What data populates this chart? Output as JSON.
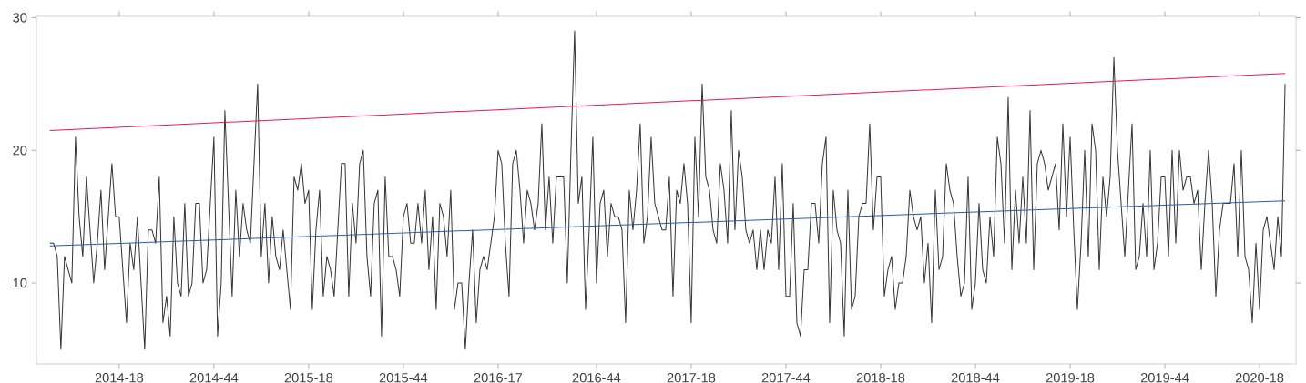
{
  "chart_data": {
    "type": "line",
    "xlim": [
      "2013-11-20",
      "2020-07-06"
    ],
    "ylim": [
      3.9,
      30.1
    ],
    "yticks": [
      10,
      20,
      30
    ],
    "xticks": [
      {
        "value": "2014-04-28",
        "label": "2014-18"
      },
      {
        "value": "2014-10-27",
        "label": "2014-44"
      },
      {
        "value": "2015-04-27",
        "label": "2015-18"
      },
      {
        "value": "2015-10-26",
        "label": "2015-44"
      },
      {
        "value": "2016-04-25",
        "label": "2016-17"
      },
      {
        "value": "2016-10-31",
        "label": "2016-44"
      },
      {
        "value": "2017-05-01",
        "label": "2017-18"
      },
      {
        "value": "2017-10-30",
        "label": "2017-44"
      },
      {
        "value": "2018-04-30",
        "label": "2018-18"
      },
      {
        "value": "2018-10-29",
        "label": "2018-44"
      },
      {
        "value": "2019-04-29",
        "label": "2019-18"
      },
      {
        "value": "2019-10-28",
        "label": "2019-44"
      },
      {
        "value": "2020-04-27",
        "label": "2020-18"
      }
    ],
    "line_style": "solid",
    "x": [
      "2013-12-16",
      "2013-12-23",
      "2013-12-30",
      "2014-01-06",
      "2014-01-13",
      "2014-01-20",
      "2014-01-27",
      "2014-02-03",
      "2014-02-10",
      "2014-02-17",
      "2014-02-24",
      "2014-03-03",
      "2014-03-10",
      "2014-03-17",
      "2014-03-24",
      "2014-03-31",
      "2014-04-07",
      "2014-04-14",
      "2014-04-21",
      "2014-04-28",
      "2014-05-05",
      "2014-05-12",
      "2014-05-19",
      "2014-05-26",
      "2014-06-02",
      "2014-06-09",
      "2014-06-16",
      "2014-06-23",
      "2014-06-30",
      "2014-07-07",
      "2014-07-14",
      "2014-07-21",
      "2014-07-28",
      "2014-08-04",
      "2014-08-11",
      "2014-08-18",
      "2014-08-25",
      "2014-09-01",
      "2014-09-08",
      "2014-09-15",
      "2014-09-22",
      "2014-09-29",
      "2014-10-06",
      "2014-10-13",
      "2014-10-20",
      "2014-10-27",
      "2014-11-03",
      "2014-11-10",
      "2014-11-17",
      "2014-11-24",
      "2014-12-01",
      "2014-12-08",
      "2014-12-15",
      "2014-12-22",
      "2014-12-29",
      "2015-01-05",
      "2015-01-12",
      "2015-01-19",
      "2015-01-26",
      "2015-02-02",
      "2015-02-09",
      "2015-02-16",
      "2015-02-23",
      "2015-03-02",
      "2015-03-09",
      "2015-03-16",
      "2015-03-23",
      "2015-03-30",
      "2015-04-06",
      "2015-04-13",
      "2015-04-20",
      "2015-04-27",
      "2015-05-04",
      "2015-05-11",
      "2015-05-18",
      "2015-05-25",
      "2015-06-01",
      "2015-06-08",
      "2015-06-15",
      "2015-06-22",
      "2015-06-29",
      "2015-07-06",
      "2015-07-13",
      "2015-07-20",
      "2015-07-27",
      "2015-08-03",
      "2015-08-10",
      "2015-08-17",
      "2015-08-24",
      "2015-08-31",
      "2015-09-07",
      "2015-09-14",
      "2015-09-21",
      "2015-09-28",
      "2015-10-05",
      "2015-10-12",
      "2015-10-19",
      "2015-10-26",
      "2015-11-02",
      "2015-11-09",
      "2015-11-16",
      "2015-11-23",
      "2015-11-30",
      "2015-12-07",
      "2015-12-14",
      "2015-12-21",
      "2015-12-28",
      "2016-01-04",
      "2016-01-11",
      "2016-01-18",
      "2016-01-25",
      "2016-02-01",
      "2016-02-08",
      "2016-02-15",
      "2016-02-22",
      "2016-02-29",
      "2016-03-07",
      "2016-03-14",
      "2016-03-21",
      "2016-03-28",
      "2016-04-04",
      "2016-04-11",
      "2016-04-18",
      "2016-04-25",
      "2016-05-02",
      "2016-05-09",
      "2016-05-16",
      "2016-05-23",
      "2016-05-30",
      "2016-06-06",
      "2016-06-13",
      "2016-06-20",
      "2016-06-27",
      "2016-07-04",
      "2016-07-11",
      "2016-07-18",
      "2016-07-25",
      "2016-08-01",
      "2016-08-08",
      "2016-08-15",
      "2016-08-22",
      "2016-08-29",
      "2016-09-05",
      "2016-09-12",
      "2016-09-19",
      "2016-09-26",
      "2016-10-03",
      "2016-10-10",
      "2016-10-17",
      "2016-10-24",
      "2016-10-31",
      "2016-11-07",
      "2016-11-14",
      "2016-11-21",
      "2016-11-28",
      "2016-12-05",
      "2016-12-12",
      "2016-12-19",
      "2016-12-26",
      "2017-01-02",
      "2017-01-09",
      "2017-01-16",
      "2017-01-23",
      "2017-01-30",
      "2017-02-06",
      "2017-02-13",
      "2017-02-20",
      "2017-02-27",
      "2017-03-06",
      "2017-03-13",
      "2017-03-20",
      "2017-03-27",
      "2017-04-03",
      "2017-04-10",
      "2017-04-17",
      "2017-04-24",
      "2017-05-01",
      "2017-05-08",
      "2017-05-15",
      "2017-05-22",
      "2017-05-29",
      "2017-06-05",
      "2017-06-12",
      "2017-06-19",
      "2017-06-26",
      "2017-07-03",
      "2017-07-10",
      "2017-07-17",
      "2017-07-24",
      "2017-07-31",
      "2017-08-07",
      "2017-08-14",
      "2017-08-21",
      "2017-08-28",
      "2017-09-04",
      "2017-09-11",
      "2017-09-18",
      "2017-09-25",
      "2017-10-02",
      "2017-10-09",
      "2017-10-16",
      "2017-10-23",
      "2017-10-30",
      "2017-11-06",
      "2017-11-13",
      "2017-11-20",
      "2017-11-27",
      "2017-12-04",
      "2017-12-11",
      "2017-12-18",
      "2017-12-25",
      "2018-01-01",
      "2018-01-08",
      "2018-01-15",
      "2018-01-22",
      "2018-01-29",
      "2018-02-05",
      "2018-02-12",
      "2018-02-19",
      "2018-02-26",
      "2018-03-05",
      "2018-03-12",
      "2018-03-19",
      "2018-03-26",
      "2018-04-02",
      "2018-04-09",
      "2018-04-16",
      "2018-04-23",
      "2018-04-30",
      "2018-05-07",
      "2018-05-14",
      "2018-05-21",
      "2018-05-28",
      "2018-06-04",
      "2018-06-11",
      "2018-06-18",
      "2018-06-25",
      "2018-07-02",
      "2018-07-09",
      "2018-07-16",
      "2018-07-23",
      "2018-07-30",
      "2018-08-06",
      "2018-08-13",
      "2018-08-20",
      "2018-08-27",
      "2018-09-03",
      "2018-09-10",
      "2018-09-17",
      "2018-09-24",
      "2018-10-01",
      "2018-10-08",
      "2018-10-15",
      "2018-10-22",
      "2018-10-29",
      "2018-11-05",
      "2018-11-12",
      "2018-11-19",
      "2018-11-26",
      "2018-12-03",
      "2018-12-10",
      "2018-12-17",
      "2018-12-24",
      "2018-12-31",
      "2019-01-07",
      "2019-01-14",
      "2019-01-21",
      "2019-01-28",
      "2019-02-04",
      "2019-02-11",
      "2019-02-18",
      "2019-02-25",
      "2019-03-04",
      "2019-03-11",
      "2019-03-18",
      "2019-03-25",
      "2019-04-01",
      "2019-04-08",
      "2019-04-15",
      "2019-04-22",
      "2019-04-29",
      "2019-05-06",
      "2019-05-13",
      "2019-05-20",
      "2019-05-27",
      "2019-06-03",
      "2019-06-10",
      "2019-06-17",
      "2019-06-24",
      "2019-07-01",
      "2019-07-08",
      "2019-07-15",
      "2019-07-22",
      "2019-07-29",
      "2019-08-05",
      "2019-08-12",
      "2019-08-19",
      "2019-08-26",
      "2019-09-02",
      "2019-09-09",
      "2019-09-16",
      "2019-09-23",
      "2019-09-30",
      "2019-10-07",
      "2019-10-14",
      "2019-10-21",
      "2019-10-28",
      "2019-11-04",
      "2019-11-11",
      "2019-11-18",
      "2019-11-25",
      "2019-12-02",
      "2019-12-09",
      "2019-12-16",
      "2019-12-23",
      "2019-12-30",
      "2020-01-06",
      "2020-01-13",
      "2020-01-20",
      "2020-01-27",
      "2020-02-03",
      "2020-02-10",
      "2020-02-17",
      "2020-02-24",
      "2020-03-02",
      "2020-03-09",
      "2020-03-16",
      "2020-03-23",
      "2020-03-30",
      "2020-04-06",
      "2020-04-13",
      "2020-04-20",
      "2020-04-27",
      "2020-05-04",
      "2020-05-11",
      "2020-05-18",
      "2020-05-25",
      "2020-06-01",
      "2020-06-08",
      "2020-06-15"
    ],
    "series": [
      {
        "color": "#333333",
        "values": [
          13,
          13,
          12,
          5,
          12,
          11,
          10,
          21,
          15,
          12,
          18,
          14,
          10,
          13,
          17,
          11,
          15,
          19,
          15,
          15,
          11,
          7,
          13,
          11,
          15,
          10,
          5,
          14,
          14,
          13,
          18,
          7,
          9,
          6,
          15,
          10,
          9,
          16,
          9,
          10,
          16,
          16,
          10,
          11,
          16,
          21,
          6,
          10,
          23,
          16,
          9,
          17,
          12,
          16,
          14,
          13,
          19,
          25,
          12,
          16,
          10,
          15,
          12,
          11,
          14,
          11,
          8,
          18,
          17,
          19,
          16,
          17,
          8,
          14,
          17,
          9,
          12,
          11,
          9,
          14,
          19,
          19,
          9,
          16,
          13,
          19,
          20,
          12,
          9,
          16,
          17,
          6,
          18,
          12,
          12,
          11,
          9,
          15,
          16,
          13,
          13,
          16,
          13,
          17,
          11,
          15,
          8,
          16,
          15,
          12,
          17,
          8,
          10,
          10,
          5,
          10,
          14,
          7,
          11,
          12,
          11,
          13,
          15,
          20,
          19,
          13,
          9,
          19,
          20,
          17,
          13,
          17,
          16,
          14,
          16,
          22,
          14,
          18,
          13,
          18,
          18,
          18,
          10,
          20,
          29,
          16,
          18,
          8,
          14,
          21,
          10,
          16,
          17,
          12,
          16,
          15,
          15,
          14,
          7,
          17,
          14,
          17,
          22,
          13,
          15,
          21,
          16,
          15,
          14,
          14,
          18,
          9,
          17,
          16,
          19,
          16,
          7,
          21,
          15,
          25,
          18,
          17,
          14,
          13,
          19,
          17,
          13,
          23,
          14,
          20,
          18,
          14,
          13,
          14,
          11,
          14,
          11,
          14,
          13,
          18,
          11,
          19,
          9,
          9,
          16,
          7,
          6,
          11,
          11,
          16,
          16,
          13,
          19,
          21,
          7,
          17,
          14,
          13,
          6,
          17,
          8,
          9,
          15,
          16,
          16,
          22,
          14,
          18,
          18,
          9,
          11,
          12,
          8,
          10,
          10,
          12,
          17,
          15,
          14,
          15,
          10,
          13,
          7,
          17,
          11,
          12,
          19,
          17,
          16,
          12,
          9,
          10,
          18,
          8,
          10,
          16,
          11,
          10,
          15,
          12,
          21,
          19,
          13,
          24,
          11,
          17,
          13,
          18,
          13,
          23,
          11,
          19,
          20,
          19,
          17,
          18,
          19,
          14,
          22,
          15,
          21,
          14,
          8,
          13,
          20,
          12,
          22,
          20,
          11,
          18,
          15,
          18,
          27,
          20,
          16,
          12,
          17,
          22,
          11,
          12,
          16,
          12,
          20,
          11,
          13,
          18,
          18,
          12,
          20,
          13,
          20,
          17,
          18,
          18,
          16,
          17,
          11,
          16,
          20,
          16,
          9,
          14,
          16,
          16,
          16,
          19,
          12,
          20,
          12,
          11,
          7,
          13,
          8,
          14,
          15,
          13,
          11,
          15,
          12,
          25
        ]
      },
      {
        "color": "#e8175d",
        "x": [
          "2013-12-16",
          "2020-06-15"
        ],
        "values": [
          21.5,
          25.8
        ]
      },
      {
        "color": "#2a5ca8",
        "x": [
          "2013-12-16",
          "2020-06-15"
        ],
        "values": [
          12.8,
          16.2
        ]
      }
    ]
  }
}
